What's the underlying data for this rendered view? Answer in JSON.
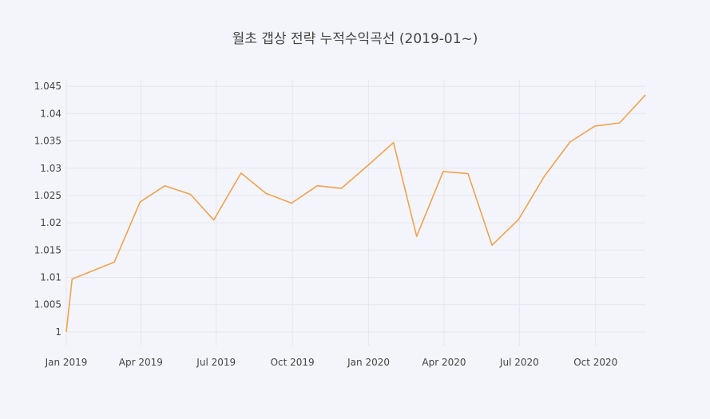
{
  "chart_data": {
    "type": "line",
    "title": "월초 갭상 전략 누적수익곡선 (2019-01~)",
    "xlabel": "",
    "ylabel": "",
    "x": [
      "2019-01-01",
      "2019-01-08",
      "2019-02-28",
      "2019-03-31",
      "2019-04-30",
      "2019-05-31",
      "2019-06-28",
      "2019-07-31",
      "2019-08-30",
      "2019-09-30",
      "2019-10-31",
      "2019-11-29",
      "2019-12-31",
      "2020-01-31",
      "2020-02-28",
      "2020-03-31",
      "2020-04-30",
      "2020-05-29",
      "2020-06-30",
      "2020-07-31",
      "2020-08-31",
      "2020-09-30",
      "2020-10-30",
      "2020-11-30"
    ],
    "series": [
      {
        "values": [
          1.0,
          1.0097,
          1.0128,
          1.0238,
          1.0268,
          1.0252,
          1.0205,
          1.0291,
          1.0254,
          1.0236,
          1.0268,
          1.0263,
          1.0305,
          1.0347,
          1.0175,
          1.0294,
          1.029,
          1.0159,
          1.0206,
          1.0285,
          1.0348,
          1.0377,
          1.0383,
          1.0434
        ]
      }
    ],
    "xlim": [
      "2019-01-01",
      "2020-11-30"
    ],
    "ylim": [
      0.9975,
      1.0462
    ],
    "y_ticks": [
      {
        "value": 1.0,
        "label": "1"
      },
      {
        "value": 1.005,
        "label": "1.005"
      },
      {
        "value": 1.01,
        "label": "1.01"
      },
      {
        "value": 1.015,
        "label": "1.015"
      },
      {
        "value": 1.02,
        "label": "1.02"
      },
      {
        "value": 1.025,
        "label": "1.025"
      },
      {
        "value": 1.03,
        "label": "1.03"
      },
      {
        "value": 1.035,
        "label": "1.035"
      },
      {
        "value": 1.04,
        "label": "1.04"
      },
      {
        "value": 1.045,
        "label": "1.045"
      }
    ],
    "x_ticks": [
      {
        "value": "2019-01-01",
        "label": "Jan 2019"
      },
      {
        "value": "2019-04-01",
        "label": "Apr 2019"
      },
      {
        "value": "2019-07-01",
        "label": "Jul 2019"
      },
      {
        "value": "2019-10-01",
        "label": "Oct 2019"
      },
      {
        "value": "2020-01-01",
        "label": "Jan 2020"
      },
      {
        "value": "2020-04-01",
        "label": "Apr 2020"
      },
      {
        "value": "2020-07-01",
        "label": "Jul 2020"
      },
      {
        "value": "2020-10-01",
        "label": "Oct 2020"
      }
    ],
    "grid": true,
    "legend": "none",
    "colors": {
      "line": "#f2a24e",
      "grid": "#e4e6ee",
      "plot_bg": "#f4f5fa",
      "text": "#444444"
    }
  }
}
